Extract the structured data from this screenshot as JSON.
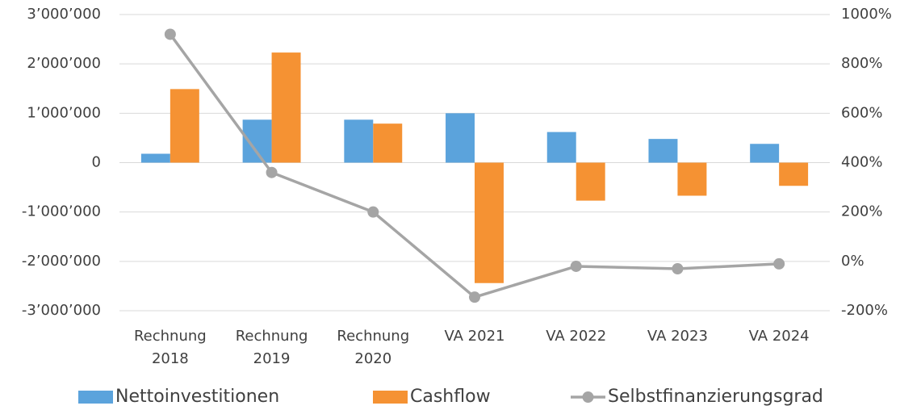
{
  "chart_data": {
    "type": "bar",
    "categories": [
      "Rechnung 2018",
      "Rechnung 2019",
      "Rechnung 2020",
      "VA 2021",
      "VA 2022",
      "VA 2023",
      "VA 2024"
    ],
    "series": [
      {
        "name": "Nettoinvestitionen",
        "type": "bar",
        "color": "#5ba3dc",
        "values": [
          180000,
          870000,
          870000,
          1000000,
          620000,
          480000,
          380000
        ]
      },
      {
        "name": "Cashflow",
        "type": "bar",
        "color": "#f59233",
        "values": [
          1490000,
          2230000,
          790000,
          -2440000,
          -770000,
          -670000,
          -470000
        ]
      },
      {
        "name": "Selbstfinanzierungsgrad",
        "type": "line",
        "axis": "y2",
        "color": "#a5a5a5",
        "values": [
          920,
          360,
          200,
          -145,
          -20,
          -30,
          -10
        ]
      }
    ],
    "ylim": [
      -3000000,
      3000000
    ],
    "yticks": [
      {
        "value": -3000000,
        "label": "-3’000’000"
      },
      {
        "value": -2000000,
        "label": "-2’000’000"
      },
      {
        "value": -1000000,
        "label": "-1’000’000"
      },
      0,
      {
        "value": 1000000,
        "label": "1’000’000"
      },
      {
        "value": 2000000,
        "label": "2’000’000"
      },
      {
        "value": 3000000,
        "label": "3’000’000"
      }
    ],
    "y2lim": [
      -200,
      1000
    ],
    "y2ticks": [
      {
        "value": -200,
        "label": "-200%"
      },
      {
        "value": 0,
        "label": "0%"
      },
      {
        "value": 200,
        "label": "200%"
      },
      {
        "value": 400,
        "label": "400%"
      },
      {
        "value": 600,
        "label": "600%"
      },
      {
        "value": 800,
        "label": "800%"
      },
      {
        "value": 1000,
        "label": "1000%"
      }
    ],
    "grid": true,
    "legend": "bottom"
  }
}
